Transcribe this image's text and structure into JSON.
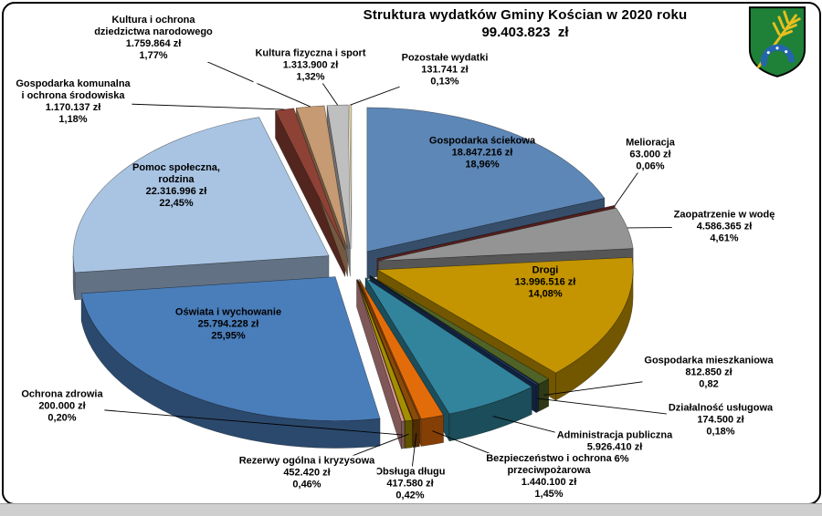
{
  "header": {
    "title": "Struktura wydatków Gminy Kościan w 2020 roku",
    "total": "99.403.823  zł"
  },
  "coat_of_arms": {
    "name": "herb-gminy-koscian",
    "shield_color": "#1f8038",
    "wheat_color": "#e8bf1e",
    "horseshoe_color": "#2565ae"
  },
  "chart_data": {
    "type": "pie",
    "style": "3d-exploded-pie",
    "title": "Struktura wydatków Gminy Kościan w 2020 roku",
    "total_label": "99.403.823  zł",
    "unit": "zł",
    "start_angle": "top",
    "direction": "clockwise",
    "slices": [
      {
        "label": "Gospodarka ściekowa",
        "label_lines": [
          "Gospodarka ściekowa"
        ],
        "value": "18.847.216 zł",
        "value_num": 18847216,
        "pct": "18,96%",
        "pct_num": 18.96,
        "color": "#5d87b6"
      },
      {
        "label": "Melioracja",
        "label_lines": [
          "Melioracja"
        ],
        "value": "63.000 zł",
        "value_num": 63000,
        "pct": "0,06%",
        "pct_num": 0.06,
        "color": "#953735"
      },
      {
        "label": "Zaopatrzenie w wodę",
        "label_lines": [
          "Zaopatrzenie w wodę"
        ],
        "value": "4.586.365 zł",
        "value_num": 4586365,
        "pct": "4,61%",
        "pct_num": 4.61,
        "color": "#949494"
      },
      {
        "label": "Drogi",
        "label_lines": [
          "Drogi"
        ],
        "value": "13.996.516 zł",
        "value_num": 13996516,
        "pct": "14,08%",
        "pct_num": 14.08,
        "color": "#c49500"
      },
      {
        "label": "Gospodarka mieszkaniowa",
        "label_lines": [
          "Gospodarka mieszkaniowa"
        ],
        "value": "812.850 zł",
        "value_num": 812850,
        "pct": "0,82",
        "pct_num": 0.82,
        "color": "#4f6228"
      },
      {
        "label": "Działalność usługowa",
        "label_lines": [
          "Działalność usługowa"
        ],
        "value": "174.500 zł",
        "value_num": 174500,
        "pct": "0,18%",
        "pct_num": 0.18,
        "color": "#1f3a68"
      },
      {
        "label": "Administracja publiczna",
        "label_lines": [
          "Administracja publiczna"
        ],
        "value": "5.926.410 zł",
        "value_num": 5926410,
        "pct": "5,96%",
        "pct_num": 5.96,
        "color": "#31849b"
      },
      {
        "label": "Bezpieczeństwo i ochrona przeciwpożarowa",
        "label_lines": [
          "Bezpieczeństwo i ochrona",
          "przeciwpożarowa"
        ],
        "value": "1.440.100 zł",
        "value_num": 1440100,
        "pct": "1,45%",
        "pct_num": 1.45,
        "color": "#e36c0a"
      },
      {
        "label": "Obsługa długu",
        "label_lines": [
          "Obsługa długu"
        ],
        "value": "417.580 zł",
        "value_num": 417580,
        "pct": "0,42%",
        "pct_num": 0.42,
        "color": "#8a4b08"
      },
      {
        "label": "Rezerwy ogólna i kryzysowa",
        "label_lines": [
          "Rezerwy ogólna i kryzysowa"
        ],
        "value": "452.420 zł",
        "value_num": 452420,
        "pct": "0,46%",
        "pct_num": 0.46,
        "color": "#a38f00"
      },
      {
        "label": "Ochrona zdrowia",
        "label_lines": [
          "Ochrona zdrowia"
        ],
        "value": "200.000 zł",
        "value_num": 200000,
        "pct": "0,20%",
        "pct_num": 0.2,
        "color": "#d99694"
      },
      {
        "label": "Oświata i wychowanie",
        "label_lines": [
          "Oświata i wychowanie"
        ],
        "value": "25.794.228 zł",
        "value_num": 25794228,
        "pct": "25,95%",
        "pct_num": 25.95,
        "color": "#4a7ebb"
      },
      {
        "label": "Pomoc społeczna, rodzina",
        "label_lines": [
          "Pomoc społeczna,",
          "rodzina"
        ],
        "value": "22.316.996 zł",
        "value_num": 22316996,
        "pct": "22,45%",
        "pct_num": 22.45,
        "color": "#a9c4e3"
      },
      {
        "label": "Gospodarka komunalna i ochrona środowiska",
        "label_lines": [
          "Gospodarka komunalna",
          "i ochrona środowiska"
        ],
        "value": "1.170.137 zł",
        "value_num": 1170137,
        "pct": "1,18%",
        "pct_num": 1.18,
        "color": "#8e4135"
      },
      {
        "label": "Kultura i ochrona dziedzictwa narodowego",
        "label_lines": [
          "Kultura i ochrona",
          "dziedzictwa narodowego"
        ],
        "value": "1.759.864 zł",
        "value_num": 1759864,
        "pct": "1,77%",
        "pct_num": 1.77,
        "color": "#c69a72"
      },
      {
        "label": "Kultura fizyczna i sport",
        "label_lines": [
          "Kultura fizyczna i sport"
        ],
        "value": "1.313.900 zł",
        "value_num": 1313900,
        "pct": "1,32%",
        "pct_num": 1.32,
        "color": "#bfbfbf"
      },
      {
        "label": "Pozostałe wydatki",
        "label_lines": [
          "Pozostałe wydatki"
        ],
        "value": "131.741 zł",
        "value_num": 131741,
        "pct": "0,13%",
        "pct_num": 0.13,
        "color": "#e8d9a2"
      }
    ]
  }
}
